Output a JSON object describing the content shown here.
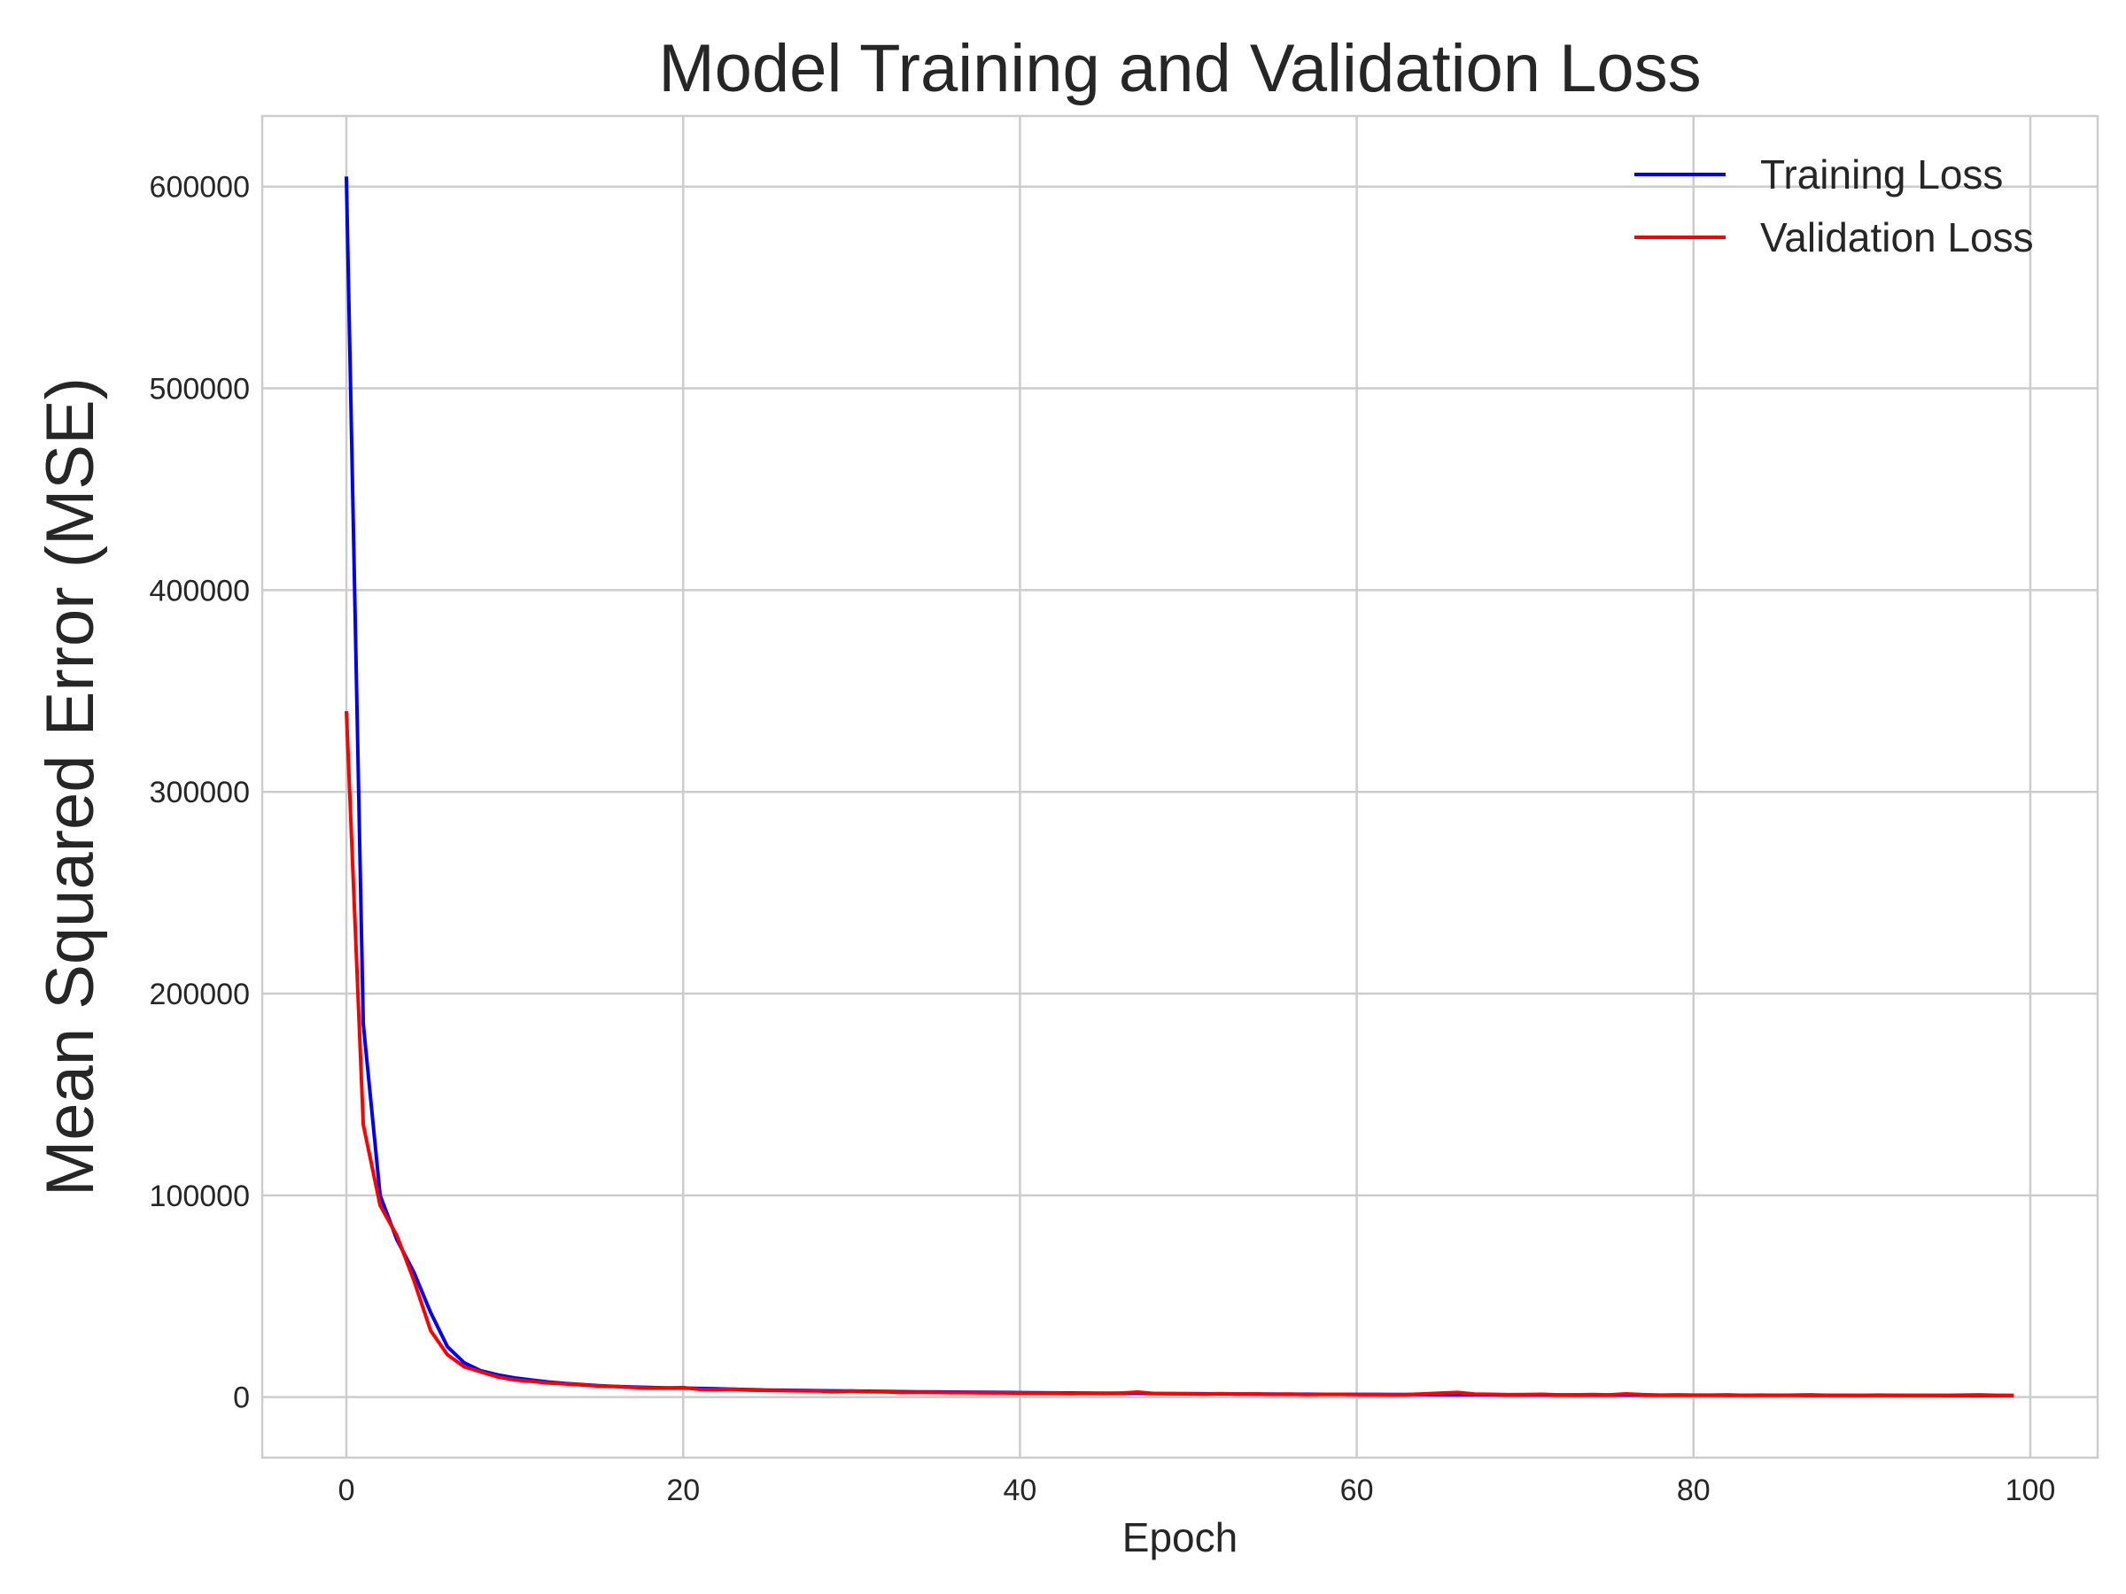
{
  "chart_data": {
    "type": "line",
    "title": "Model Training and Validation Loss",
    "xlabel": "Epoch",
    "ylabel": "Mean Squared Error (MSE)",
    "xlim": [
      -5,
      104
    ],
    "ylim": [
      -30000,
      635000
    ],
    "xticks": [
      0,
      20,
      40,
      60,
      80,
      100
    ],
    "yticks": [
      0,
      100000,
      200000,
      300000,
      400000,
      500000,
      600000
    ],
    "grid": true,
    "legend_position": "top-right",
    "series": [
      {
        "name": "Training Loss",
        "color": "#0000ff",
        "x": [
          0,
          1,
          2,
          3,
          4,
          5,
          6,
          7,
          8,
          9,
          10,
          11,
          12,
          13,
          14,
          15,
          16,
          17,
          18,
          19,
          20,
          21,
          22,
          23,
          24,
          25,
          26,
          27,
          28,
          29,
          30,
          31,
          32,
          33,
          34,
          35,
          36,
          37,
          38,
          39,
          40,
          41,
          42,
          43,
          44,
          45,
          46,
          47,
          48,
          49,
          50,
          51,
          52,
          53,
          54,
          55,
          56,
          57,
          58,
          59,
          60,
          61,
          62,
          63,
          64,
          65,
          66,
          67,
          68,
          69,
          70,
          71,
          72,
          73,
          74,
          75,
          76,
          77,
          78,
          79,
          80,
          81,
          82,
          83,
          84,
          85,
          86,
          87,
          88,
          89,
          90,
          91,
          92,
          93,
          94,
          95,
          96,
          97,
          98,
          99
        ],
        "y": [
          605000,
          185000,
          100000,
          78000,
          62000,
          42000,
          25000,
          17000,
          13000,
          11000,
          9500,
          8500,
          7500,
          6800,
          6200,
          5700,
          5300,
          5000,
          4800,
          4600,
          4500,
          4300,
          4100,
          3900,
          3700,
          3500,
          3400,
          3300,
          3200,
          3100,
          3000,
          2900,
          2800,
          2700,
          2600,
          2550,
          2500,
          2450,
          2400,
          2300,
          2200,
          2150,
          2100,
          2050,
          2000,
          1950,
          1900,
          1850,
          1800,
          1750,
          1700,
          1650,
          1600,
          1550,
          1500,
          1480,
          1450,
          1420,
          1400,
          1380,
          1350,
          1330,
          1300,
          1280,
          1250,
          1230,
          1200,
          1180,
          1150,
          1130,
          1100,
          1080,
          1050,
          1030,
          1000,
          990,
          980,
          970,
          960,
          950,
          940,
          930,
          920,
          910,
          900,
          890,
          880,
          870,
          860,
          850,
          840,
          830,
          820,
          810,
          800,
          790,
          780,
          770,
          760,
          750
        ]
      },
      {
        "name": "Validation Loss",
        "color": "#ff0000",
        "x": [
          0,
          1,
          2,
          3,
          4,
          5,
          6,
          7,
          8,
          9,
          10,
          11,
          12,
          13,
          14,
          15,
          16,
          17,
          18,
          19,
          20,
          21,
          22,
          23,
          24,
          25,
          26,
          27,
          28,
          29,
          30,
          31,
          32,
          33,
          34,
          35,
          36,
          37,
          38,
          39,
          40,
          41,
          42,
          43,
          44,
          45,
          46,
          47,
          48,
          49,
          50,
          51,
          52,
          53,
          54,
          55,
          56,
          57,
          58,
          59,
          60,
          61,
          62,
          63,
          64,
          65,
          66,
          67,
          68,
          69,
          70,
          71,
          72,
          73,
          74,
          75,
          76,
          77,
          78,
          79,
          80,
          81,
          82,
          83,
          84,
          85,
          86,
          87,
          88,
          89,
          90,
          91,
          92,
          93,
          94,
          95,
          96,
          97,
          98,
          99
        ],
        "y": [
          340000,
          135000,
          95000,
          80000,
          58000,
          33000,
          21000,
          15000,
          12500,
          10000,
          8500,
          7800,
          7000,
          6500,
          6000,
          5500,
          5200,
          4800,
          4500,
          4500,
          4700,
          3800,
          3700,
          3900,
          3400,
          3300,
          3200,
          3100,
          3000,
          2700,
          3000,
          2700,
          2600,
          2300,
          2400,
          2300,
          2200,
          2200,
          2100,
          2100,
          2000,
          1900,
          2000,
          1700,
          1900,
          1800,
          2000,
          2500,
          1800,
          1700,
          1600,
          1500,
          1700,
          1500,
          1600,
          1400,
          1500,
          1300,
          1400,
          1400,
          1300,
          1300,
          1200,
          1300,
          1600,
          2000,
          2300,
          1500,
          1400,
          1200,
          1300,
          1400,
          1100,
          1100,
          1300,
          1100,
          1600,
          1200,
          1000,
          1100,
          1000,
          1000,
          1100,
          900,
          1000,
          900,
          1000,
          1100,
          900,
          900,
          800,
          1000,
          900,
          800,
          800,
          900,
          1000,
          1100,
          900,
          800
        ]
      }
    ]
  }
}
